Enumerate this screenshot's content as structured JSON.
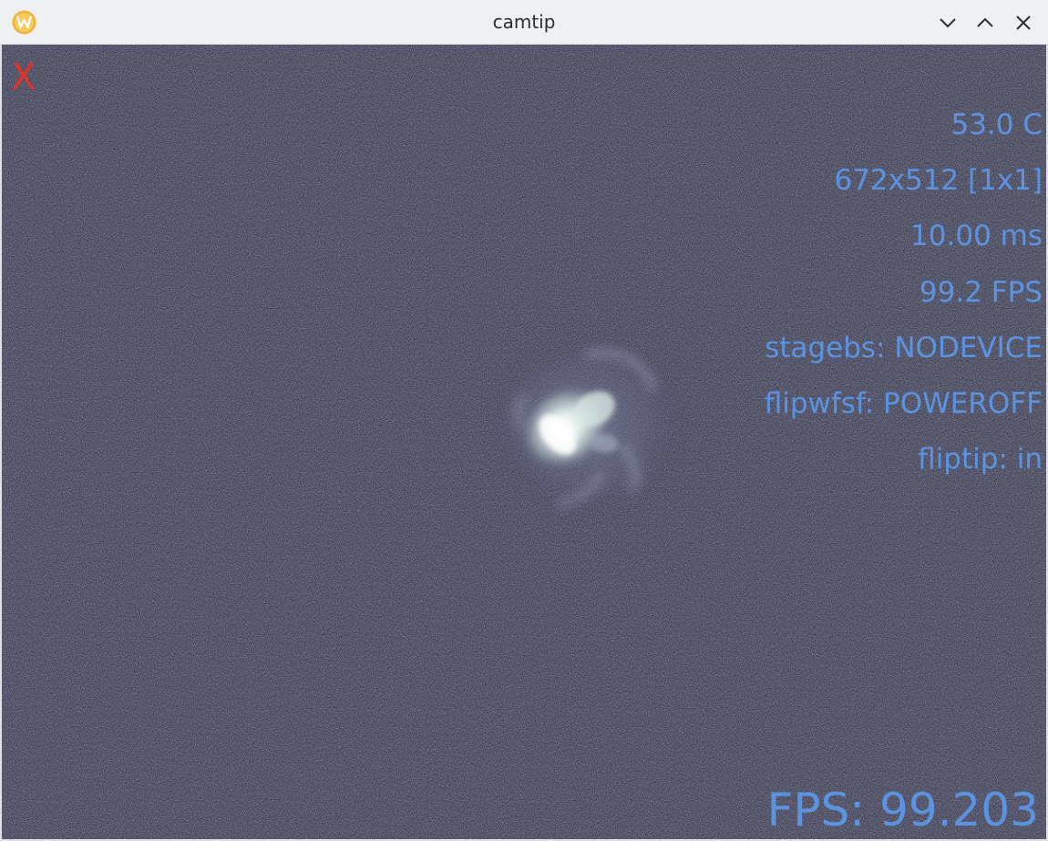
{
  "window": {
    "title": "camtip",
    "app_icon": "w-logo-icon",
    "controls": [
      "chevron-down-icon",
      "chevron-up-icon",
      "close-icon"
    ]
  },
  "viewer": {
    "close_label": "X",
    "status": {
      "temperature": "53.0 C",
      "resolution": "672x512 [1x1]",
      "exposure": "10.00 ms",
      "framerate": "99.2 FPS",
      "stagebs": "stagebs: NODEVICE",
      "flipwfsf": "flipwfsf: POWEROFF",
      "fliptip": "fliptip: in"
    },
    "fps_readout": "FPS: 99.203"
  },
  "colors": {
    "background": "#3a3b52",
    "overlay_text": "#5c93e0",
    "close_x": "#e0332a",
    "spot": "#e6f2ee"
  }
}
